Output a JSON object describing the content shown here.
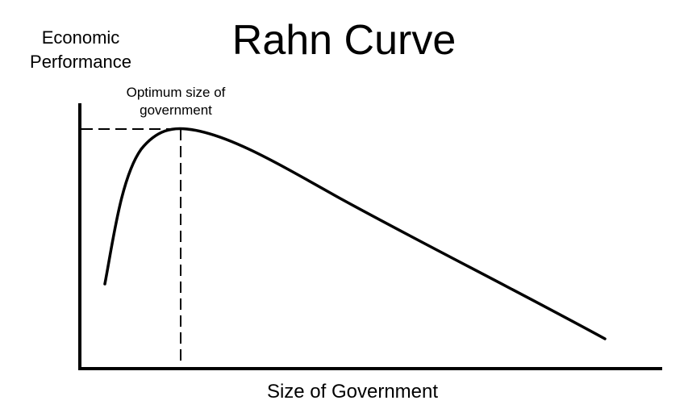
{
  "title": "Rahn Curve",
  "y_axis_label": [
    "Economic",
    "Performance"
  ],
  "x_axis_label": "Size of Government",
  "annotation": [
    "Optimum size of",
    "government"
  ],
  "colors": {
    "line": "#000000",
    "background": "#ffffff"
  }
}
